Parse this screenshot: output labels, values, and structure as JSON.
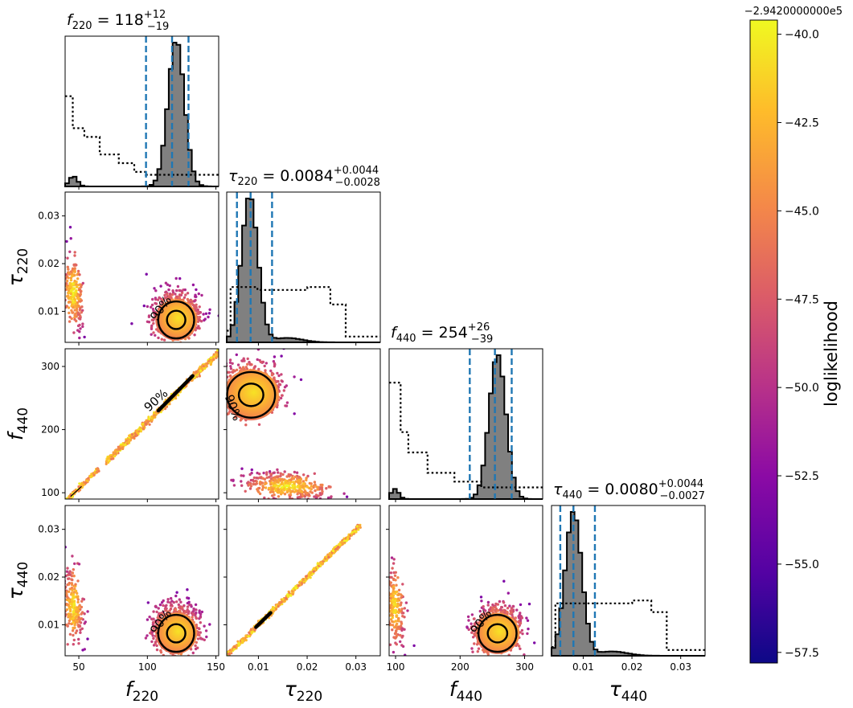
{
  "chart_data": {
    "type": "corner",
    "parameters": [
      {
        "name": "f_220",
        "base": "f",
        "sub": "220",
        "range": [
          40,
          152
        ],
        "ticks": [
          50,
          100,
          150
        ],
        "tick_labels": [
          "50",
          "100",
          "150"
        ],
        "median": 118,
        "plus": "+12",
        "minus": "−19",
        "value_text": "118"
      },
      {
        "name": "tau_220",
        "base": "τ",
        "sub": "220",
        "range": [
          0.0035,
          0.035
        ],
        "ticks": [
          0.01,
          0.02,
          0.03
        ],
        "tick_labels": [
          "0.01",
          "0.02",
          "0.03"
        ],
        "median": 0.0084,
        "plus": "+0.0044",
        "minus": "−0.0028",
        "value_text": "0.0084"
      },
      {
        "name": "f_440",
        "base": "f",
        "sub": "440",
        "range": [
          90,
          328
        ],
        "ticks": [
          100,
          200,
          300
        ],
        "tick_labels": [
          "100",
          "200",
          "300"
        ],
        "median": 254,
        "plus": "+26",
        "minus": "−39",
        "value_text": "254"
      },
      {
        "name": "tau_440",
        "base": "τ",
        "sub": "440",
        "range": [
          0.0035,
          0.035
        ],
        "ticks": [
          0.01,
          0.02,
          0.03
        ],
        "tick_labels": [
          "0.01",
          "0.02",
          "0.03"
        ],
        "median": 0.008,
        "plus": "+0.0044",
        "minus": "−0.0027",
        "value_text": "0.0080"
      }
    ],
    "quantile_lines": [
      [
        99,
        118,
        130
      ],
      [
        0.0056,
        0.0084,
        0.0128
      ],
      [
        215,
        254,
        280
      ],
      [
        0.0053,
        0.008,
        0.0124
      ]
    ],
    "contour_label": "90%",
    "colorbar": {
      "label": "loglikelihood",
      "offset_text": "−2.9420000000e5",
      "range": [
        -57.8,
        -39.6
      ],
      "ticks": [
        -40.0,
        -42.5,
        -45.0,
        -47.5,
        -50.0,
        -52.5,
        -55.0,
        -57.5
      ],
      "tick_labels": [
        "−40.0",
        "−42.5",
        "−45.0",
        "−47.5",
        "−50.0",
        "−52.5",
        "−55.0",
        "−57.5"
      ],
      "colormap": "plasma"
    },
    "colors": {
      "histogram_fill": "#808080",
      "quantile_line": "#1f77b4",
      "prior_line": "#000000",
      "contour": "#000000"
    }
  }
}
